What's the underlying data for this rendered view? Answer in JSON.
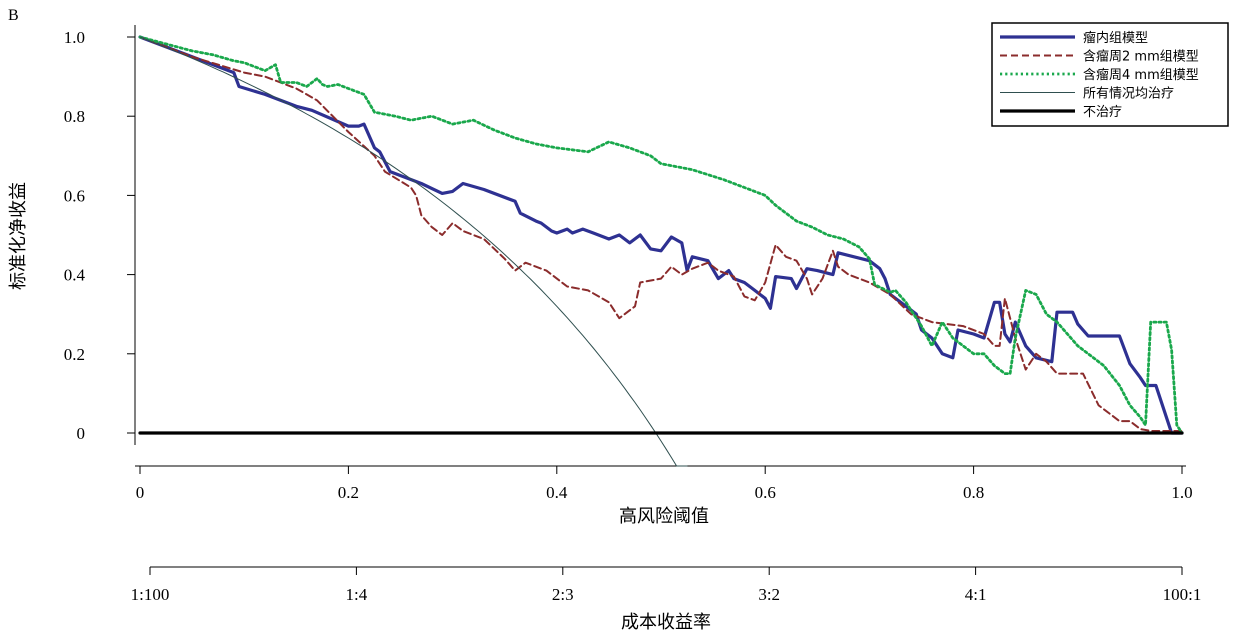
{
  "panel_label": "B",
  "chart_data": {
    "type": "line",
    "title": "",
    "xlabel": "高风险阈值",
    "ylabel": "标准化净收益",
    "xlim": [
      0,
      1.0
    ],
    "ylim": [
      0,
      1.0
    ],
    "x_ticks": [
      "0",
      "0.2",
      "0.4",
      "0.6",
      "0.8",
      "1.0"
    ],
    "y_ticks": [
      "0",
      "0.2",
      "0.4",
      "0.6",
      "0.8",
      "1.0"
    ],
    "secondary_axis": {
      "label": "成本收益率",
      "ticks": [
        "1:100",
        "1:4",
        "2:3",
        "3:2",
        "4:1",
        "100:1"
      ]
    },
    "legend_position": "top-right",
    "grid": false,
    "series": [
      {
        "name": "瘤内组模型",
        "color": "#2e3192",
        "style": "solid-thick",
        "points": [
          [
            0,
            1.0
          ],
          [
            0.05,
            0.95
          ],
          [
            0.09,
            0.91
          ],
          [
            0.095,
            0.875
          ],
          [
            0.12,
            0.855
          ],
          [
            0.15,
            0.825
          ],
          [
            0.165,
            0.815
          ],
          [
            0.2,
            0.775
          ],
          [
            0.21,
            0.775
          ],
          [
            0.215,
            0.78
          ],
          [
            0.225,
            0.72
          ],
          [
            0.23,
            0.71
          ],
          [
            0.24,
            0.66
          ],
          [
            0.27,
            0.63
          ],
          [
            0.29,
            0.605
          ],
          [
            0.3,
            0.61
          ],
          [
            0.31,
            0.63
          ],
          [
            0.33,
            0.615
          ],
          [
            0.36,
            0.585
          ],
          [
            0.365,
            0.555
          ],
          [
            0.38,
            0.535
          ],
          [
            0.385,
            0.53
          ],
          [
            0.395,
            0.51
          ],
          [
            0.4,
            0.505
          ],
          [
            0.41,
            0.515
          ],
          [
            0.415,
            0.505
          ],
          [
            0.425,
            0.515
          ],
          [
            0.435,
            0.505
          ],
          [
            0.45,
            0.49
          ],
          [
            0.46,
            0.5
          ],
          [
            0.47,
            0.48
          ],
          [
            0.48,
            0.5
          ],
          [
            0.49,
            0.465
          ],
          [
            0.5,
            0.46
          ],
          [
            0.51,
            0.495
          ],
          [
            0.52,
            0.48
          ],
          [
            0.525,
            0.41
          ],
          [
            0.53,
            0.445
          ],
          [
            0.545,
            0.435
          ],
          [
            0.555,
            0.39
          ],
          [
            0.565,
            0.41
          ],
          [
            0.57,
            0.39
          ],
          [
            0.58,
            0.38
          ],
          [
            0.59,
            0.36
          ],
          [
            0.6,
            0.34
          ],
          [
            0.605,
            0.315
          ],
          [
            0.61,
            0.395
          ],
          [
            0.625,
            0.39
          ],
          [
            0.63,
            0.365
          ],
          [
            0.64,
            0.415
          ],
          [
            0.65,
            0.41
          ],
          [
            0.665,
            0.4
          ],
          [
            0.67,
            0.455
          ],
          [
            0.7,
            0.435
          ],
          [
            0.71,
            0.415
          ],
          [
            0.715,
            0.39
          ],
          [
            0.72,
            0.35
          ],
          [
            0.73,
            0.33
          ],
          [
            0.74,
            0.31
          ],
          [
            0.745,
            0.3
          ],
          [
            0.75,
            0.26
          ],
          [
            0.76,
            0.24
          ],
          [
            0.77,
            0.2
          ],
          [
            0.78,
            0.19
          ],
          [
            0.785,
            0.26
          ],
          [
            0.8,
            0.25
          ],
          [
            0.81,
            0.24
          ],
          [
            0.82,
            0.33
          ],
          [
            0.825,
            0.33
          ],
          [
            0.83,
            0.25
          ],
          [
            0.835,
            0.23
          ],
          [
            0.84,
            0.28
          ],
          [
            0.85,
            0.22
          ],
          [
            0.86,
            0.19
          ],
          [
            0.875,
            0.18
          ],
          [
            0.88,
            0.305
          ],
          [
            0.895,
            0.305
          ],
          [
            0.9,
            0.275
          ],
          [
            0.91,
            0.245
          ],
          [
            0.93,
            0.245
          ],
          [
            0.94,
            0.245
          ],
          [
            0.95,
            0.175
          ],
          [
            0.96,
            0.14
          ],
          [
            0.965,
            0.12
          ],
          [
            0.975,
            0.12
          ],
          [
            0.99,
            0.0
          ],
          [
            1.0,
            0.0
          ]
        ]
      },
      {
        "name": "含瘤周2 mm组模型",
        "color": "#8b2c2c",
        "style": "dashed",
        "points": [
          [
            0,
            1.0
          ],
          [
            0.05,
            0.95
          ],
          [
            0.1,
            0.91
          ],
          [
            0.12,
            0.9
          ],
          [
            0.15,
            0.87
          ],
          [
            0.17,
            0.84
          ],
          [
            0.2,
            0.76
          ],
          [
            0.225,
            0.7
          ],
          [
            0.235,
            0.66
          ],
          [
            0.26,
            0.62
          ],
          [
            0.265,
            0.6
          ],
          [
            0.27,
            0.55
          ],
          [
            0.28,
            0.52
          ],
          [
            0.29,
            0.5
          ],
          [
            0.3,
            0.53
          ],
          [
            0.31,
            0.51
          ],
          [
            0.33,
            0.49
          ],
          [
            0.35,
            0.44
          ],
          [
            0.36,
            0.41
          ],
          [
            0.37,
            0.43
          ],
          [
            0.38,
            0.42
          ],
          [
            0.39,
            0.41
          ],
          [
            0.41,
            0.37
          ],
          [
            0.43,
            0.36
          ],
          [
            0.45,
            0.33
          ],
          [
            0.46,
            0.29
          ],
          [
            0.475,
            0.32
          ],
          [
            0.48,
            0.38
          ],
          [
            0.5,
            0.39
          ],
          [
            0.51,
            0.42
          ],
          [
            0.52,
            0.4
          ],
          [
            0.53,
            0.415
          ],
          [
            0.545,
            0.43
          ],
          [
            0.555,
            0.41
          ],
          [
            0.57,
            0.395
          ],
          [
            0.575,
            0.37
          ],
          [
            0.58,
            0.345
          ],
          [
            0.59,
            0.335
          ],
          [
            0.6,
            0.38
          ],
          [
            0.61,
            0.475
          ],
          [
            0.62,
            0.445
          ],
          [
            0.63,
            0.435
          ],
          [
            0.64,
            0.39
          ],
          [
            0.645,
            0.35
          ],
          [
            0.655,
            0.39
          ],
          [
            0.665,
            0.46
          ],
          [
            0.67,
            0.42
          ],
          [
            0.68,
            0.4
          ],
          [
            0.7,
            0.38
          ],
          [
            0.72,
            0.35
          ],
          [
            0.74,
            0.3
          ],
          [
            0.76,
            0.28
          ],
          [
            0.79,
            0.27
          ],
          [
            0.81,
            0.25
          ],
          [
            0.82,
            0.22
          ],
          [
            0.825,
            0.22
          ],
          [
            0.83,
            0.34
          ],
          [
            0.84,
            0.24
          ],
          [
            0.85,
            0.16
          ],
          [
            0.86,
            0.2
          ],
          [
            0.87,
            0.18
          ],
          [
            0.88,
            0.15
          ],
          [
            0.905,
            0.15
          ],
          [
            0.92,
            0.07
          ],
          [
            0.94,
            0.03
          ],
          [
            0.95,
            0.03
          ],
          [
            0.96,
            0.01
          ],
          [
            0.97,
            0.005
          ],
          [
            1.0,
            0.005
          ]
        ]
      },
      {
        "name": "含瘤周4 mm组模型",
        "color": "#1aa84c",
        "style": "dotted",
        "points": [
          [
            0,
            1.0
          ],
          [
            0.05,
            0.965
          ],
          [
            0.07,
            0.955
          ],
          [
            0.09,
            0.94
          ],
          [
            0.1,
            0.935
          ],
          [
            0.12,
            0.915
          ],
          [
            0.13,
            0.93
          ],
          [
            0.135,
            0.885
          ],
          [
            0.15,
            0.885
          ],
          [
            0.16,
            0.875
          ],
          [
            0.17,
            0.895
          ],
          [
            0.175,
            0.88
          ],
          [
            0.18,
            0.875
          ],
          [
            0.19,
            0.88
          ],
          [
            0.2,
            0.87
          ],
          [
            0.215,
            0.855
          ],
          [
            0.225,
            0.81
          ],
          [
            0.245,
            0.8
          ],
          [
            0.26,
            0.79
          ],
          [
            0.28,
            0.8
          ],
          [
            0.3,
            0.78
          ],
          [
            0.32,
            0.79
          ],
          [
            0.34,
            0.765
          ],
          [
            0.36,
            0.745
          ],
          [
            0.38,
            0.73
          ],
          [
            0.4,
            0.72
          ],
          [
            0.43,
            0.71
          ],
          [
            0.45,
            0.735
          ],
          [
            0.47,
            0.72
          ],
          [
            0.49,
            0.7
          ],
          [
            0.5,
            0.68
          ],
          [
            0.53,
            0.665
          ],
          [
            0.56,
            0.64
          ],
          [
            0.58,
            0.62
          ],
          [
            0.6,
            0.6
          ],
          [
            0.61,
            0.575
          ],
          [
            0.63,
            0.535
          ],
          [
            0.645,
            0.52
          ],
          [
            0.66,
            0.5
          ],
          [
            0.675,
            0.49
          ],
          [
            0.69,
            0.47
          ],
          [
            0.7,
            0.44
          ],
          [
            0.705,
            0.375
          ],
          [
            0.72,
            0.355
          ],
          [
            0.725,
            0.36
          ],
          [
            0.735,
            0.33
          ],
          [
            0.745,
            0.29
          ],
          [
            0.75,
            0.27
          ],
          [
            0.76,
            0.22
          ],
          [
            0.77,
            0.28
          ],
          [
            0.78,
            0.24
          ],
          [
            0.79,
            0.22
          ],
          [
            0.8,
            0.2
          ],
          [
            0.81,
            0.2
          ],
          [
            0.82,
            0.17
          ],
          [
            0.83,
            0.15
          ],
          [
            0.835,
            0.15
          ],
          [
            0.84,
            0.24
          ],
          [
            0.85,
            0.36
          ],
          [
            0.86,
            0.35
          ],
          [
            0.87,
            0.3
          ],
          [
            0.88,
            0.28
          ],
          [
            0.89,
            0.25
          ],
          [
            0.9,
            0.22
          ],
          [
            0.91,
            0.2
          ],
          [
            0.925,
            0.17
          ],
          [
            0.94,
            0.12
          ],
          [
            0.95,
            0.07
          ],
          [
            0.96,
            0.04
          ],
          [
            0.965,
            0.02
          ],
          [
            0.97,
            0.28
          ],
          [
            0.985,
            0.28
          ],
          [
            0.99,
            0.21
          ],
          [
            0.995,
            0.02
          ],
          [
            1.0,
            0.0
          ]
        ]
      },
      {
        "name": "所有情况均治疗",
        "color": "#2f4f4f",
        "style": "thin-solid"
      },
      {
        "name": "不治疗",
        "color": "#000000",
        "style": "solid-thick",
        "points": [
          [
            0,
            0
          ],
          [
            1.0,
            0
          ]
        ]
      }
    ]
  }
}
